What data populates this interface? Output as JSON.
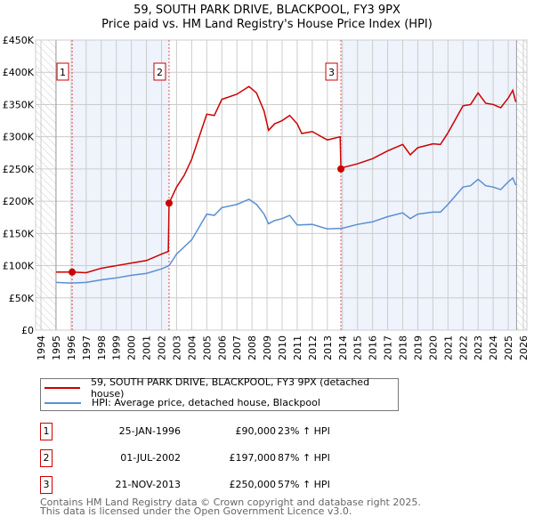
{
  "title": "59, SOUTH PARK DRIVE, BLACKPOOL, FY3 9PX",
  "subtitle": "Price paid vs. HM Land Registry's House Price Index (HPI)",
  "chart_data": {
    "type": "line",
    "title": "59, SOUTH PARK DRIVE, BLACKPOOL, FY3 9PX",
    "subtitle": "Price paid vs. HM Land Registry's House Price Index (HPI)",
    "xlim": [
      1994,
      2026
    ],
    "ylim": [
      0,
      450000
    ],
    "x_ticks": [
      "1994",
      "1995",
      "1996",
      "1997",
      "1998",
      "1999",
      "2000",
      "2001",
      "2002",
      "2003",
      "2004",
      "2005",
      "2006",
      "2007",
      "2008",
      "2009",
      "2010",
      "2011",
      "2012",
      "2013",
      "2014",
      "2015",
      "2016",
      "2017",
      "2018",
      "2019",
      "2020",
      "2021",
      "2022",
      "2023",
      "2024",
      "2025",
      "2026"
    ],
    "y_ticks": [
      {
        "v": 0,
        "label": "£0"
      },
      {
        "v": 50000,
        "label": "£50K"
      },
      {
        "v": 100000,
        "label": "£100K"
      },
      {
        "v": 150000,
        "label": "£150K"
      },
      {
        "v": 200000,
        "label": "£200K"
      },
      {
        "v": 250000,
        "label": "£250K"
      },
      {
        "v": 300000,
        "label": "£300K"
      },
      {
        "v": 350000,
        "label": "£350K"
      },
      {
        "v": 400000,
        "label": "£400K"
      },
      {
        "v": 450000,
        "label": "£450K"
      }
    ],
    "grid": true,
    "series": [
      {
        "name": "59, SOUTH PARK DRIVE, BLACKPOOL, FY3 9PX (detached house)",
        "color": "#cc0000",
        "x": [
          1995,
          1996.07,
          1997,
          1998,
          1999,
          2000,
          2001,
          2002,
          2002.45,
          2002.5,
          2003,
          2003.5,
          2004,
          2004.5,
          2005,
          2005.5,
          2006,
          2007,
          2007.8,
          2008.3,
          2008.8,
          2009.1,
          2009.5,
          2010,
          2010.5,
          2011,
          2011.3,
          2012,
          2013,
          2013.85,
          2013.9,
          2014,
          2015,
          2016,
          2017,
          2018,
          2018.5,
          2019,
          2020,
          2020.5,
          2021,
          2022,
          2022.5,
          2023,
          2023.5,
          2024,
          2024.5,
          2025,
          2025.3,
          2025.5
        ],
        "y": [
          90000,
          90000,
          89000,
          96000,
          100000,
          104000,
          108000,
          118000,
          122000,
          197000,
          222000,
          240000,
          265000,
          300000,
          335000,
          333000,
          358000,
          366000,
          378000,
          368000,
          340000,
          310000,
          320000,
          325000,
          333000,
          320000,
          305000,
          308000,
          295000,
          300000,
          250000,
          252000,
          258000,
          266000,
          278000,
          288000,
          272000,
          283000,
          289000,
          288000,
          306000,
          348000,
          350000,
          368000,
          352000,
          350000,
          345000,
          360000,
          372000,
          354000
        ]
      },
      {
        "name": "HPI: Average price, detached house, Blackpool",
        "color": "#5b8fd0",
        "x": [
          1995,
          1996,
          1997,
          1998,
          1999,
          2000,
          2001,
          2002,
          2002.5,
          2003,
          2004,
          2004.5,
          2005,
          2005.5,
          2006,
          2007,
          2007.8,
          2008.3,
          2008.8,
          2009.1,
          2009.5,
          2010,
          2010.5,
          2011,
          2012,
          2013,
          2014,
          2015,
          2016,
          2017,
          2018,
          2018.5,
          2019,
          2020,
          2020.5,
          2021,
          2022,
          2022.5,
          2023,
          2023.5,
          2024,
          2024.5,
          2025,
          2025.3,
          2025.5
        ],
        "y": [
          74000,
          73000,
          74000,
          78000,
          81000,
          85000,
          88000,
          95000,
          100000,
          118000,
          140000,
          160000,
          180000,
          178000,
          190000,
          195000,
          203000,
          195000,
          180000,
          165000,
          170000,
          173000,
          178000,
          163000,
          164000,
          157000,
          158000,
          164000,
          168000,
          176000,
          182000,
          173000,
          180000,
          183000,
          183000,
          195000,
          222000,
          224000,
          234000,
          224000,
          222000,
          218000,
          230000,
          236000,
          225000
        ]
      }
    ],
    "sales": [
      {
        "n": "1",
        "x": 1996.07,
        "y": 90000,
        "date": "25-JAN-1996",
        "price": "£90,000",
        "hpi": "23% ↑ HPI"
      },
      {
        "n": "2",
        "x": 2002.5,
        "y": 197000,
        "date": "01-JUL-2002",
        "price": "£197,000",
        "hpi": "87% ↑ HPI"
      },
      {
        "n": "3",
        "x": 2013.9,
        "y": 250000,
        "date": "21-NOV-2013",
        "price": "£250,000",
        "hpi": "57% ↑ HPI"
      }
    ],
    "legend_position": "below"
  },
  "footer": [
    "Contains HM Land Registry data © Crown copyright and database right 2025.",
    "This data is licensed under the Open Government Licence v3.0."
  ]
}
